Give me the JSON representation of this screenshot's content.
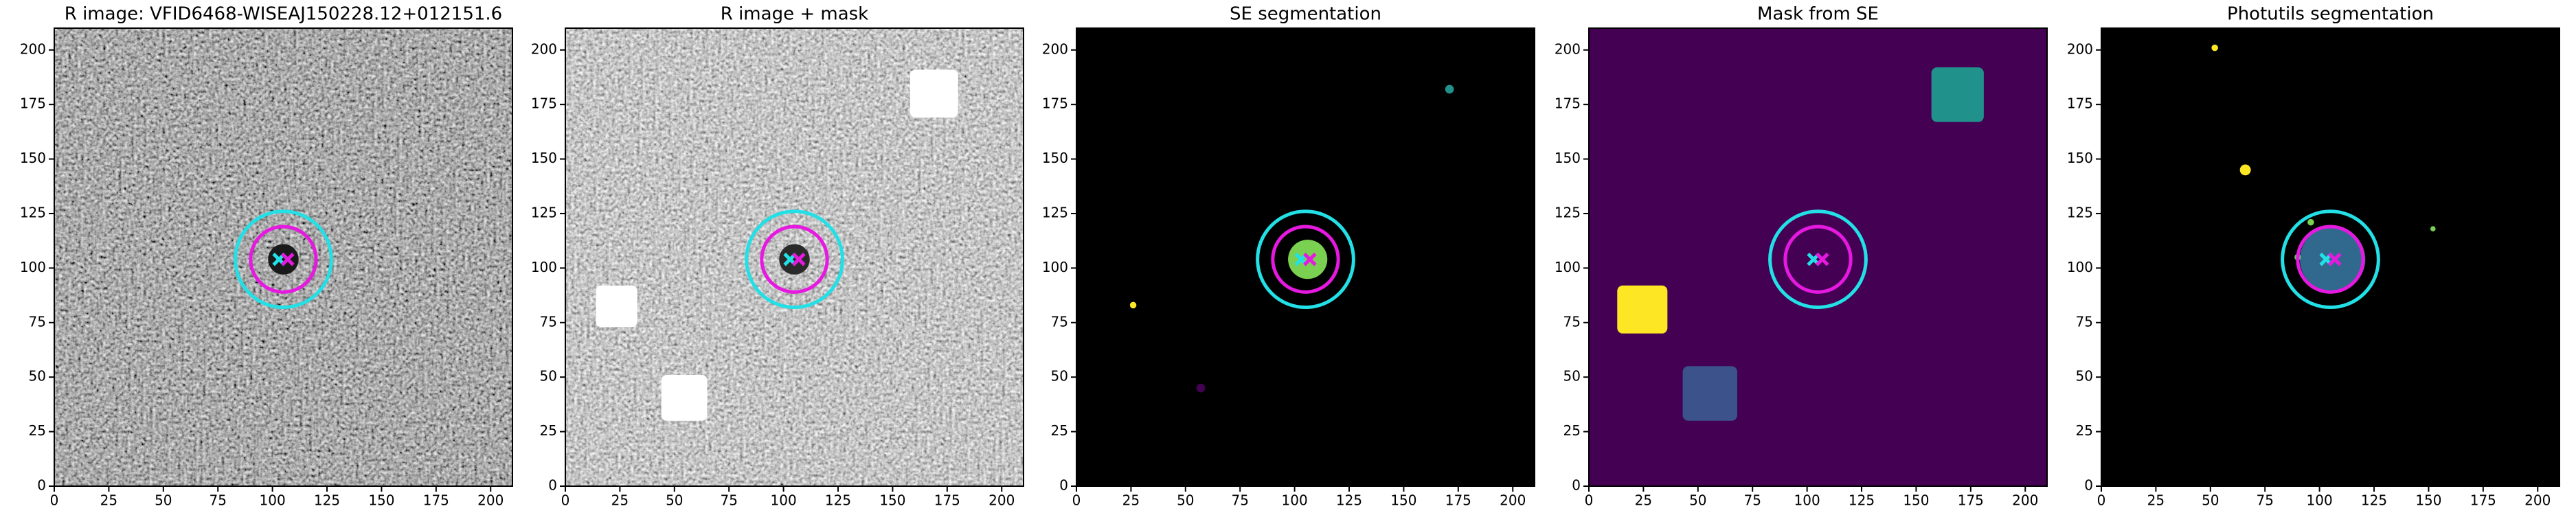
{
  "chart_data": [
    {
      "type": "image",
      "title": "R image: VFID6468-WISEAJ150228.12+012151.6",
      "cmap": "gray",
      "background": "#5a5a5a",
      "xlim": [
        0,
        210
      ],
      "ylim": [
        0,
        210
      ],
      "xticks": [
        0,
        25,
        50,
        75,
        100,
        125,
        150,
        175,
        200
      ],
      "yticks": [
        0,
        25,
        50,
        75,
        100,
        125,
        150,
        175,
        200
      ],
      "masks": [],
      "regions": [
        {
          "x": 105,
          "y": 104,
          "r": 7,
          "color": "#1a1a1a"
        }
      ],
      "apertures": [
        {
          "x": 105,
          "y": 104,
          "r": 22,
          "color": "#22e0e6"
        },
        {
          "x": 105,
          "y": 104,
          "r": 15,
          "color": "#e619e0"
        }
      ],
      "markers": [
        {
          "x": 103,
          "y": 104,
          "color": "#22e0e6"
        },
        {
          "x": 107,
          "y": 104,
          "color": "#e619e0"
        }
      ]
    },
    {
      "type": "image",
      "title": "R image + mask",
      "cmap": "gray",
      "background": "#8a8a8a",
      "xlim": [
        0,
        210
      ],
      "ylim": [
        0,
        210
      ],
      "xticks": [
        0,
        25,
        50,
        75,
        100,
        125,
        150,
        175,
        200
      ],
      "yticks": [
        0,
        25,
        50,
        75,
        100,
        125,
        150,
        175,
        200
      ],
      "masks": [
        {
          "x": [
            14,
            33
          ],
          "y": [
            73,
            92
          ],
          "color": "#ffffff"
        },
        {
          "x": [
            44,
            65
          ],
          "y": [
            30,
            51
          ],
          "color": "#ffffff"
        },
        {
          "x": [
            158,
            180
          ],
          "y": [
            169,
            191
          ],
          "color": "#ffffff"
        }
      ],
      "regions": [
        {
          "x": 105,
          "y": 104,
          "r": 7,
          "color": "#2a2a2a"
        }
      ],
      "apertures": [
        {
          "x": 105,
          "y": 104,
          "r": 22,
          "color": "#22e0e6"
        },
        {
          "x": 105,
          "y": 104,
          "r": 15,
          "color": "#e619e0"
        }
      ],
      "markers": [
        {
          "x": 103,
          "y": 104,
          "color": "#22e0e6"
        },
        {
          "x": 107,
          "y": 104,
          "color": "#e619e0"
        }
      ]
    },
    {
      "type": "image",
      "title": "SE segmentation",
      "background": "#000000",
      "xlim": [
        0,
        210
      ],
      "ylim": [
        0,
        210
      ],
      "xticks": [
        0,
        25,
        50,
        75,
        100,
        125,
        150,
        175,
        200
      ],
      "yticks": [
        0,
        25,
        50,
        75,
        100,
        125,
        150,
        175,
        200
      ],
      "masks": [],
      "regions": [
        {
          "x": 106,
          "y": 104,
          "r": 9,
          "color": "#7ad151"
        },
        {
          "x": 26,
          "y": 83,
          "r": 1.5,
          "color": "#fde725"
        },
        {
          "x": 57,
          "y": 45,
          "r": 2,
          "color": "#440154"
        },
        {
          "x": 171,
          "y": 182,
          "r": 2,
          "color": "#21918c"
        }
      ],
      "apertures": [
        {
          "x": 105,
          "y": 104,
          "r": 22,
          "color": "#22e0e6"
        },
        {
          "x": 105,
          "y": 104,
          "r": 15,
          "color": "#e619e0"
        }
      ],
      "markers": [
        {
          "x": 103,
          "y": 104,
          "color": "#22e0e6"
        },
        {
          "x": 107,
          "y": 104,
          "color": "#e619e0"
        }
      ]
    },
    {
      "type": "image",
      "title": "Mask from SE",
      "background": "#440154",
      "xlim": [
        0,
        210
      ],
      "ylim": [
        0,
        210
      ],
      "xticks": [
        0,
        25,
        50,
        75,
        100,
        125,
        150,
        175,
        200
      ],
      "yticks": [
        0,
        25,
        50,
        75,
        100,
        125,
        150,
        175,
        200
      ],
      "masks": [
        {
          "x": [
            13,
            36
          ],
          "y": [
            70,
            92
          ],
          "color": "#fde725"
        },
        {
          "x": [
            43,
            68
          ],
          "y": [
            30,
            55
          ],
          "color": "#3b528b"
        },
        {
          "x": [
            157,
            181
          ],
          "y": [
            167,
            192
          ],
          "color": "#21918c"
        }
      ],
      "regions": [],
      "apertures": [
        {
          "x": 105,
          "y": 104,
          "r": 22,
          "color": "#22e0e6"
        },
        {
          "x": 105,
          "y": 104,
          "r": 15,
          "color": "#e619e0"
        }
      ],
      "markers": [
        {
          "x": 103,
          "y": 104,
          "color": "#22e0e6"
        },
        {
          "x": 107,
          "y": 104,
          "color": "#e619e0"
        }
      ]
    },
    {
      "type": "image",
      "title": "Photutils segmentation",
      "background": "#000000",
      "xlim": [
        0,
        210
      ],
      "ylim": [
        0,
        210
      ],
      "xticks": [
        0,
        25,
        50,
        75,
        100,
        125,
        150,
        175,
        200
      ],
      "yticks": [
        0,
        25,
        50,
        75,
        100,
        125,
        150,
        175,
        200
      ],
      "masks": [],
      "regions": [
        {
          "x": 106,
          "y": 104,
          "r": 15,
          "color": "#31688e"
        },
        {
          "x": 52,
          "y": 201,
          "r": 1.5,
          "color": "#fde725"
        },
        {
          "x": 66,
          "y": 145,
          "r": 2.5,
          "color": "#fde725"
        },
        {
          "x": 152,
          "y": 118,
          "r": 1.2,
          "color": "#7ad151"
        },
        {
          "x": 96,
          "y": 121,
          "r": 1.5,
          "color": "#7ad151"
        },
        {
          "x": 90,
          "y": 105,
          "r": 1.5,
          "color": "#5ec962"
        }
      ],
      "apertures": [
        {
          "x": 105,
          "y": 104,
          "r": 22,
          "color": "#22e0e6"
        },
        {
          "x": 105,
          "y": 104,
          "r": 15,
          "color": "#e619e0"
        }
      ],
      "markers": [
        {
          "x": 103,
          "y": 104,
          "color": "#22e0e6"
        },
        {
          "x": 107,
          "y": 104,
          "color": "#e619e0"
        }
      ]
    }
  ]
}
